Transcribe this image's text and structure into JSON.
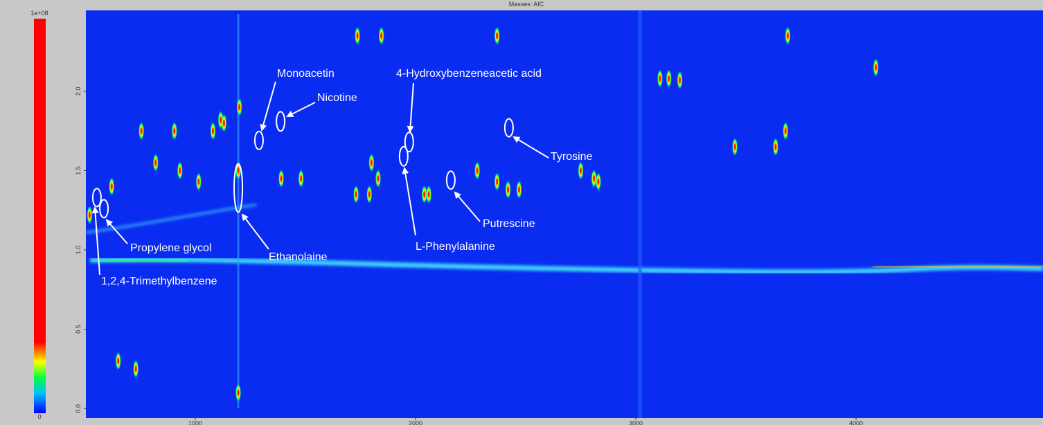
{
  "chart_data": {
    "type": "contour",
    "title": "Masses: AIC",
    "xlim": [
      503,
      4849
    ],
    "ylim": [
      -0.06,
      2.51
    ],
    "xticks": [
      1000,
      2000,
      3000,
      4000
    ],
    "yticks": [
      {
        "value": 0,
        "label": "0.0"
      },
      0.5,
      {
        "value": 1,
        "label": "1.0"
      },
      1.5,
      {
        "value": 2,
        "label": "2.0"
      }
    ],
    "colorbar": {
      "lim": [
        0,
        100000000
      ],
      "ticks": [
        0,
        {
          "value": 100000000,
          "label": "1e+08"
        }
      ]
    },
    "background": "#0a2cf0",
    "spots": {
      "x": [
        1736,
        1845,
        2370,
        3690,
        3110,
        3150,
        3200,
        4090,
        1115,
        1130,
        755,
        905,
        1080,
        1200,
        1195,
        820,
        930,
        3450,
        3635,
        3680,
        2750,
        2830,
        2810,
        2370,
        2420,
        2470,
        2060,
        1830,
        1790,
        1730,
        1480,
        1390,
        1195,
        2040,
        1015,
        620,
        520,
        1800,
        650,
        730,
        2280
      ],
      "y": [
        2.35,
        2.35,
        2.35,
        2.35,
        2.08,
        2.08,
        2.07,
        2.15,
        1.82,
        1.8,
        1.75,
        1.75,
        1.75,
        1.9,
        1.5,
        1.55,
        1.5,
        1.65,
        1.65,
        1.75,
        1.5,
        1.43,
        1.45,
        1.43,
        1.38,
        1.38,
        1.35,
        1.45,
        1.35,
        1.35,
        1.45,
        1.45,
        0.1,
        1.35,
        1.43,
        1.4,
        1.22,
        1.55,
        0.3,
        0.25,
        1.5
      ]
    },
    "annotations": [
      {
        "text": "Monoacetin",
        "x": 1289,
        "y": 1.69
      },
      {
        "text": "Nicotine",
        "x": 1387,
        "y": 1.81
      },
      {
        "text": "4-Hydroxybenzeneacetic acid",
        "x": 1971,
        "y": 1.68
      },
      {
        "text": "L-Phenylalanine",
        "x": 1946,
        "y": 1.59
      },
      {
        "text": "Putrescine",
        "x": 2160,
        "y": 1.44
      },
      {
        "text": "Tyrosine",
        "x": 2424,
        "y": 1.77
      },
      {
        "text": "Ethanolaine",
        "x": 1195,
        "y": 1.39
      },
      {
        "text": "Propylene glycol",
        "x": 585,
        "y": 1.26
      },
      {
        "text": "1,2,4-Trimethylbenzene",
        "x": 553,
        "y": 1.33
      }
    ]
  }
}
